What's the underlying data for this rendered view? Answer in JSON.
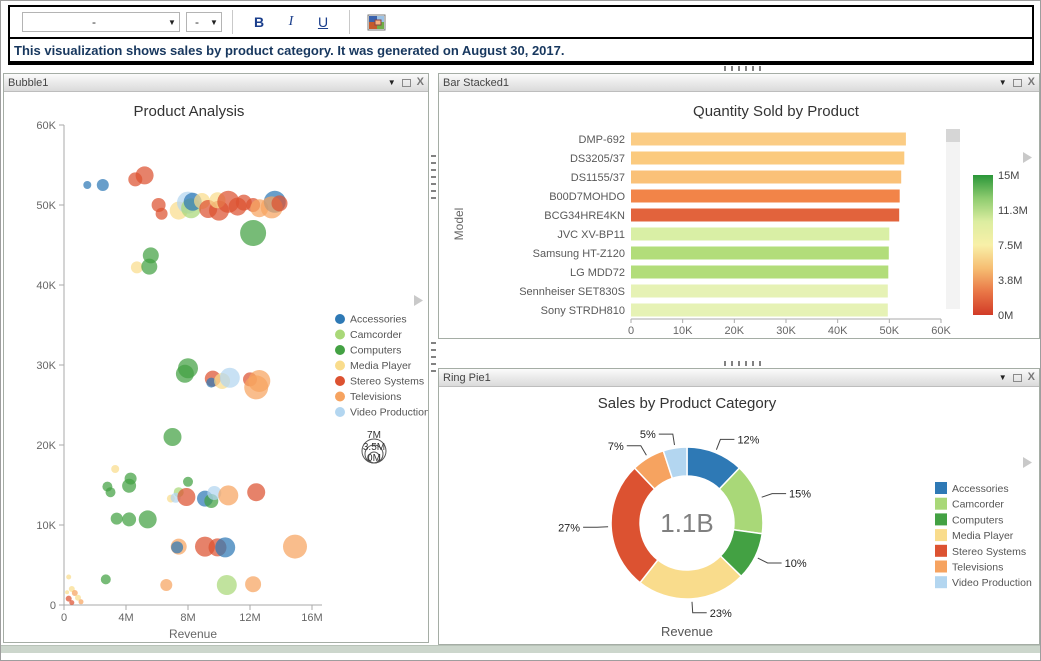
{
  "toolbar": {
    "font_value": "-",
    "size_value": "-",
    "bold_label": "B",
    "italic_label": "I",
    "underline_label": "U"
  },
  "banner": {
    "text": "This visualization shows sales by product category. It was generated on August 30, 2017."
  },
  "panels": {
    "bubble": {
      "title": "Bubble1"
    },
    "bar": {
      "title": "Bar Stacked1"
    },
    "pie": {
      "title": "Ring Pie1"
    }
  },
  "palette": {
    "Accessories": "#2e79b5",
    "Camcorder": "#a9d878",
    "Computers": "#43a143",
    "Media Player": "#f9dc8c",
    "Stereo Systems": "#dc5231",
    "Televisions": "#f6a360",
    "Video Production": "#b3d6f0"
  },
  "chart_data": [
    {
      "id": "bubble",
      "type": "scatter",
      "title": "Product Analysis",
      "xlabel": "Revenue",
      "xlim": [
        0,
        16000000
      ],
      "x_ticks": [
        "0",
        "4M",
        "8M",
        "12M",
        "16M"
      ],
      "ylim": [
        0,
        60000
      ],
      "y_ticks": [
        "0",
        "10K",
        "20K",
        "30K",
        "40K",
        "50K",
        "60K"
      ],
      "legend": [
        "Accessories",
        "Camcorder",
        "Computers",
        "Media Player",
        "Stereo Systems",
        "Televisions",
        "Video Production"
      ],
      "size_legend": [
        "7M",
        "3.5M",
        "0M"
      ],
      "point_columns": [
        "category",
        "revenue_millions",
        "quantity_thousands",
        "radius_px"
      ],
      "points": [
        [
          "Accessories",
          1.5,
          52.5,
          4
        ],
        [
          "Accessories",
          2.5,
          52.5,
          6
        ],
        [
          "Stereo Systems",
          4.6,
          53.2,
          7
        ],
        [
          "Stereo Systems",
          5.2,
          53.7,
          9
        ],
        [
          "Stereo Systems",
          6.1,
          50.0,
          7
        ],
        [
          "Stereo Systems",
          6.3,
          48.9,
          6
        ],
        [
          "Media Player",
          7.4,
          49.3,
          9
        ],
        [
          "Video Production",
          8.0,
          50.3,
          11
        ],
        [
          "Camcorder",
          8.2,
          49.6,
          10
        ],
        [
          "Accessories",
          8.3,
          50.4,
          9
        ],
        [
          "Media Player",
          8.9,
          50.5,
          8
        ],
        [
          "Stereo Systems",
          9.3,
          49.5,
          9
        ],
        [
          "Stereo Systems",
          10.0,
          49.3,
          10
        ],
        [
          "Media Player",
          9.9,
          50.6,
          8
        ],
        [
          "Stereo Systems",
          10.6,
          50.4,
          11
        ],
        [
          "Stereo Systems",
          11.2,
          49.8,
          9
        ],
        [
          "Stereo Systems",
          11.6,
          50.3,
          8
        ],
        [
          "Stereo Systems",
          12.2,
          50.0,
          7
        ],
        [
          "Televisions",
          12.6,
          49.6,
          9
        ],
        [
          "Accessories",
          13.6,
          50.4,
          11
        ],
        [
          "Televisions",
          13.4,
          49.7,
          11
        ],
        [
          "Stereo Systems",
          13.9,
          50.2,
          8
        ],
        [
          "Computers",
          12.2,
          46.5,
          13
        ],
        [
          "Media Player",
          4.7,
          42.2,
          6
        ],
        [
          "Computers",
          5.6,
          43.7,
          8
        ],
        [
          "Computers",
          5.5,
          42.3,
          8
        ],
        [
          "Computers",
          8.0,
          29.6,
          10
        ],
        [
          "Computers",
          7.8,
          28.9,
          9
        ],
        [
          "Stereo Systems",
          9.6,
          28.3,
          8
        ],
        [
          "Accessories",
          9.5,
          27.8,
          5
        ],
        [
          "Media Player",
          10.2,
          28.0,
          8
        ],
        [
          "Video Production",
          10.7,
          28.4,
          10
        ],
        [
          "Stereo Systems",
          12.0,
          28.2,
          7
        ],
        [
          "Televisions",
          12.6,
          28.0,
          11
        ],
        [
          "Televisions",
          12.4,
          27.2,
          12
        ],
        [
          "Computers",
          7.0,
          21.0,
          9
        ],
        [
          "Media Player",
          3.3,
          17.0,
          4
        ],
        [
          "Computers",
          4.3,
          15.8,
          6
        ],
        [
          "Computers",
          4.2,
          14.9,
          7
        ],
        [
          "Computers",
          8.0,
          15.4,
          5
        ],
        [
          "Computers",
          2.8,
          14.8,
          5
        ],
        [
          "Computers",
          3.0,
          14.1,
          5
        ],
        [
          "Camcorder",
          7.4,
          14.1,
          5
        ],
        [
          "Media Player",
          6.9,
          13.3,
          4
        ],
        [
          "Video Production",
          7.2,
          13.4,
          5
        ],
        [
          "Stereo Systems",
          7.9,
          13.5,
          9
        ],
        [
          "Accessories",
          9.1,
          13.3,
          8
        ],
        [
          "Computers",
          9.5,
          13.0,
          7
        ],
        [
          "Video Production",
          9.7,
          14.0,
          7
        ],
        [
          "Televisions",
          10.6,
          13.7,
          10
        ],
        [
          "Stereo Systems",
          12.4,
          14.1,
          9
        ],
        [
          "Computers",
          3.4,
          10.8,
          6
        ],
        [
          "Computers",
          4.2,
          10.7,
          7
        ],
        [
          "Computers",
          5.4,
          10.7,
          9
        ],
        [
          "Televisions",
          7.4,
          7.3,
          8
        ],
        [
          "Accessories",
          7.3,
          7.2,
          6
        ],
        [
          "Stereo Systems",
          9.1,
          7.3,
          10
        ],
        [
          "Stereo Systems",
          9.9,
          7.2,
          9
        ],
        [
          "Accessories",
          10.4,
          7.2,
          10
        ],
        [
          "Televisions",
          14.9,
          7.3,
          12
        ],
        [
          "Computers",
          2.7,
          3.2,
          5
        ],
        [
          "Televisions",
          6.6,
          2.5,
          6
        ],
        [
          "Camcorder",
          10.5,
          2.5,
          10
        ],
        [
          "Televisions",
          12.2,
          2.6,
          8
        ],
        [
          "Media Player",
          0.3,
          3.5,
          2.5
        ],
        [
          "Media Player",
          0.5,
          2.0,
          3
        ],
        [
          "Televisions",
          0.7,
          1.5,
          3
        ],
        [
          "Stereo Systems",
          0.3,
          0.8,
          3
        ],
        [
          "Media Player",
          0.9,
          0.9,
          3
        ],
        [
          "Stereo Systems",
          0.5,
          0.3,
          2.5
        ],
        [
          "Televisions",
          1.1,
          0.4,
          2.5
        ],
        [
          "Media Player",
          0.2,
          1.6,
          2
        ]
      ]
    },
    {
      "id": "bar",
      "type": "bar",
      "title": "Quantity Sold by Product",
      "ylabel": "Model",
      "categories": [
        "DMP-692",
        "DS3205/37",
        "DS1155/37",
        "B00D7MOHDO",
        "BCG34HRE4KN",
        "JVC XV-BP11",
        "Samsung HT-Z120",
        "LG MDD72",
        "Sennheiser SET830S",
        "Sony STRDH810"
      ],
      "values": [
        53200,
        52900,
        52300,
        52000,
        51900,
        50000,
        49900,
        49800,
        49700,
        49700
      ],
      "bar_colors": [
        "#fbcc84",
        "#fbca7e",
        "#fac178",
        "#f28448",
        "#e2633c",
        "#d9efa5",
        "#b2dd7a",
        "#b2dd7a",
        "#e6f2b5",
        "#e6f2b5"
      ],
      "xlim": [
        0,
        60000
      ],
      "x_ticks": [
        "0",
        "10K",
        "20K",
        "30K",
        "40K",
        "50K",
        "60K"
      ],
      "color_scale": {
        "tick_labels": [
          "15M",
          "11.3M",
          "7.5M",
          "3.8M",
          "0M"
        ],
        "stops": [
          "#2a9639",
          "#8fcc70",
          "#dceda0",
          "#f8f0a8",
          "#f6bd72",
          "#e97747",
          "#d23b27"
        ]
      }
    },
    {
      "id": "pie",
      "type": "pie",
      "title": "Sales by Product Category",
      "center_label": "1.1B",
      "xlabel": "Revenue",
      "slices": [
        {
          "label": "Accessories",
          "pct": 12
        },
        {
          "label": "Camcorder",
          "pct": 15
        },
        {
          "label": "Computers",
          "pct": 10
        },
        {
          "label": "Media Player",
          "pct": 23
        },
        {
          "label": "Stereo Systems",
          "pct": 27
        },
        {
          "label": "Televisions",
          "pct": 7
        },
        {
          "label": "Video Production",
          "pct": 5
        }
      ],
      "legend": [
        "Accessories",
        "Camcorder",
        "Computers",
        "Media Player",
        "Stereo Systems",
        "Televisions",
        "Video Production"
      ]
    }
  ]
}
